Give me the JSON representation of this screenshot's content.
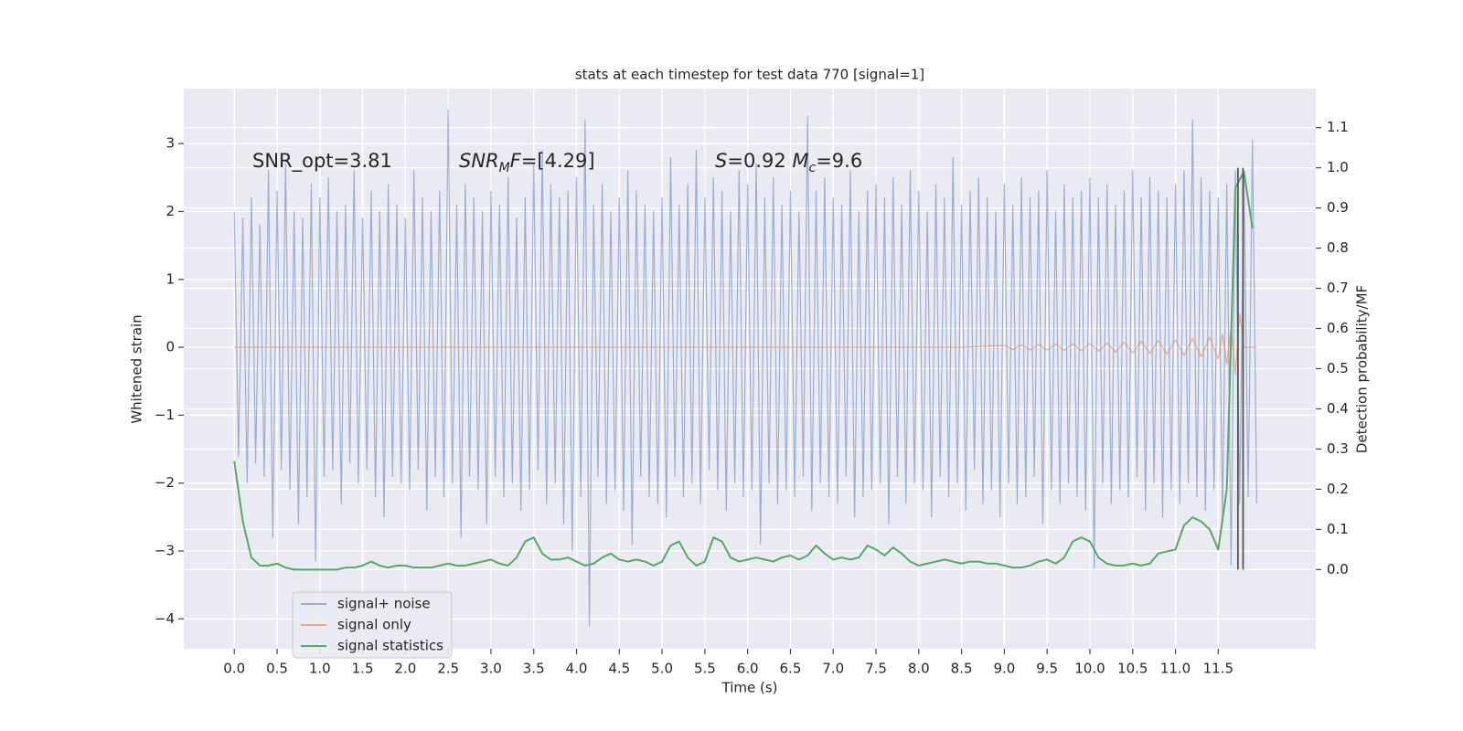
{
  "chart_data": {
    "type": "line",
    "title": "stats at each timestep for test data 770 [signal=1]",
    "xlabel": "Time (s)",
    "ylabel": "Whitened strain",
    "y2label": "Detection probability/MF",
    "xlim": [
      -0.59,
      12.64
    ],
    "ylim": [
      -4.44,
      3.81
    ],
    "y2lim": [
      -0.197,
      1.197
    ],
    "xticks": [
      {
        "value": 0,
        "label": "0.0"
      },
      0.5,
      {
        "value": 1,
        "label": "1.0"
      },
      1.5,
      {
        "value": 2,
        "label": "2.0"
      },
      2.5,
      {
        "value": 3,
        "label": "3.0"
      },
      3.5,
      {
        "value": 4,
        "label": "4.0"
      },
      4.5,
      {
        "value": 5,
        "label": "5.0"
      },
      5.5,
      {
        "value": 6,
        "label": "6.0"
      },
      6.5,
      {
        "value": 7,
        "label": "7.0"
      },
      7.5,
      {
        "value": 8,
        "label": "8.0"
      },
      8.5,
      {
        "value": 9,
        "label": "9.0"
      },
      9.5,
      {
        "value": 10,
        "label": "10.0"
      },
      10.5,
      {
        "value": 11,
        "label": "11.0"
      },
      11.5
    ],
    "yticks": [
      {
        "value": -4,
        "label": "−4"
      },
      {
        "value": -3,
        "label": "−3"
      },
      {
        "value": -2,
        "label": "−2"
      },
      {
        "value": -1,
        "label": "−1"
      },
      0,
      1,
      2,
      3
    ],
    "y2ticks": [
      {
        "value": 0,
        "label": "0.0"
      },
      0.1,
      0.2,
      0.3,
      0.4,
      0.5,
      0.6,
      0.7,
      0.8,
      0.9,
      {
        "value": 1,
        "label": "1.0"
      },
      1.1
    ],
    "grid": true,
    "legend": "lower left",
    "annotations": [
      [
        {
          "text": "SNR_opt=3.81"
        }
      ],
      [
        {
          "text": "SNR",
          "italic": true
        },
        {
          "text": "M",
          "italic": true,
          "sub": true
        },
        {
          "text": "F",
          "italic": true
        },
        {
          "text": "=[4.29]"
        }
      ],
      [
        {
          "text": "S",
          "italic": true
        },
        {
          "text": "=0.92   "
        },
        {
          "text": "M",
          "italic": true
        },
        {
          "text": "c",
          "italic": true,
          "sub": true
        },
        {
          "text": "=9.6"
        }
      ]
    ],
    "vlines": {
      "color": "#555555",
      "x": [
        11.73,
        11.79
      ],
      "y2": [
        0,
        1
      ]
    },
    "series": [
      {
        "name": "signal+ noise",
        "color": "#4c72b0",
        "opacity": 0.5,
        "axis": "y",
        "x": [
          0,
          0.05,
          0.1,
          0.15,
          0.2,
          0.25,
          0.3,
          0.35,
          0.4,
          0.45,
          0.5,
          0.55,
          0.6,
          0.65,
          0.7,
          0.75,
          0.8,
          0.85,
          0.9,
          0.95,
          1,
          1.05,
          1.1,
          1.15,
          1.2,
          1.25,
          1.3,
          1.35,
          1.4,
          1.45,
          1.5,
          1.55,
          1.6,
          1.65,
          1.7,
          1.75,
          1.8,
          1.85,
          1.9,
          1.95,
          2,
          2.05,
          2.1,
          2.15,
          2.2,
          2.25,
          2.3,
          2.35,
          2.4,
          2.45,
          2.5,
          2.55,
          2.6,
          2.65,
          2.7,
          2.75,
          2.8,
          2.85,
          2.9,
          2.95,
          3,
          3.05,
          3.1,
          3.15,
          3.2,
          3.25,
          3.3,
          3.35,
          3.4,
          3.45,
          3.5,
          3.55,
          3.6,
          3.65,
          3.7,
          3.75,
          3.8,
          3.85,
          3.9,
          3.95,
          4,
          4.05,
          4.1,
          4.15,
          4.2,
          4.25,
          4.3,
          4.35,
          4.4,
          4.45,
          4.5,
          4.55,
          4.6,
          4.65,
          4.7,
          4.75,
          4.8,
          4.85,
          4.9,
          4.95,
          5,
          5.05,
          5.1,
          5.15,
          5.2,
          5.25,
          5.3,
          5.35,
          5.4,
          5.45,
          5.5,
          5.55,
          5.6,
          5.65,
          5.7,
          5.75,
          5.8,
          5.85,
          5.9,
          5.95,
          6,
          6.05,
          6.1,
          6.15,
          6.2,
          6.25,
          6.3,
          6.35,
          6.4,
          6.45,
          6.5,
          6.55,
          6.6,
          6.65,
          6.7,
          6.75,
          6.8,
          6.85,
          6.9,
          6.95,
          7,
          7.05,
          7.1,
          7.15,
          7.2,
          7.25,
          7.3,
          7.35,
          7.4,
          7.45,
          7.5,
          7.55,
          7.6,
          7.65,
          7.7,
          7.75,
          7.8,
          7.85,
          7.9,
          7.95,
          8,
          8.05,
          8.1,
          8.15,
          8.2,
          8.25,
          8.3,
          8.35,
          8.4,
          8.45,
          8.5,
          8.55,
          8.6,
          8.65,
          8.7,
          8.75,
          8.8,
          8.85,
          8.9,
          8.95,
          9,
          9.05,
          9.1,
          9.15,
          9.2,
          9.25,
          9.3,
          9.35,
          9.4,
          9.45,
          9.5,
          9.55,
          9.6,
          9.65,
          9.7,
          9.75,
          9.8,
          9.85,
          9.9,
          9.95,
          10,
          10.05,
          10.1,
          10.15,
          10.2,
          10.25,
          10.3,
          10.35,
          10.4,
          10.45,
          10.5,
          10.55,
          10.6,
          10.65,
          10.7,
          10.75,
          10.8,
          10.85,
          10.9,
          10.95,
          11,
          11.05,
          11.1,
          11.15,
          11.2,
          11.25,
          11.3,
          11.35,
          11.4,
          11.45,
          11.5,
          11.55,
          11.6,
          11.65,
          11.7,
          11.75,
          11.8,
          11.85,
          11.9,
          11.95
        ],
        "values": [
          2.0,
          -1.6,
          1.9,
          -2.0,
          2.2,
          -1.7,
          1.8,
          -1.9,
          2.6,
          -2.8,
          2.3,
          -1.8,
          2.7,
          -2.1,
          2.0,
          -2.6,
          1.9,
          -2.2,
          2.4,
          -3.15,
          2.2,
          -1.9,
          2.5,
          -1.8,
          2.0,
          -2.3,
          2.1,
          -1.7,
          2.6,
          -2.0,
          1.9,
          -1.8,
          2.3,
          -2.2,
          2.0,
          -2.5,
          2.4,
          -1.9,
          2.1,
          -2.0,
          1.9,
          -2.1,
          2.6,
          -1.8,
          2.2,
          -2.4,
          2.0,
          -1.9,
          2.3,
          -2.2,
          3.5,
          -2.0,
          2.1,
          -2.8,
          2.4,
          -1.9,
          2.2,
          -2.1,
          2.0,
          -2.6,
          2.3,
          -1.9,
          2.1,
          -2.2,
          2.5,
          -2.0,
          1.9,
          -2.4,
          2.2,
          -2.1,
          2.7,
          -1.8,
          2.9,
          -2.3,
          2.4,
          -2.0,
          2.2,
          -2.6,
          2.3,
          -3.0,
          2.5,
          -2.2,
          3.35,
          -4.1,
          2.1,
          -1.9,
          2.4,
          -2.3,
          2.0,
          -2.1,
          2.2,
          -2.4,
          2.6,
          -2.9,
          2.3,
          -1.9,
          2.1,
          -2.2,
          2.0,
          -2.3,
          2.2,
          -2.5,
          2.8,
          -1.9,
          2.1,
          -2.2,
          2.4,
          -2.0,
          2.9,
          -2.3,
          2.2,
          -1.8,
          2.5,
          -2.1,
          2.3,
          -2.4,
          2.0,
          -2.0,
          2.6,
          -2.2,
          2.4,
          -2.1,
          2.7,
          -2.9,
          2.2,
          -2.0,
          2.5,
          -2.3,
          2.1,
          -2.1,
          2.3,
          -2.2,
          2.0,
          -1.9,
          3.4,
          -2.4,
          2.3,
          -2.0,
          2.5,
          -2.2,
          2.2,
          -2.3,
          2.1,
          -1.9,
          2.6,
          -2.5,
          2.0,
          -2.2,
          2.3,
          -2.1,
          2.4,
          -2.0,
          2.2,
          -2.6,
          2.5,
          -1.9,
          2.1,
          -2.3,
          2.6,
          -2.0,
          2.3,
          -2.1,
          2.0,
          -2.5,
          2.4,
          -1.9,
          2.2,
          -2.2,
          2.8,
          -2.0,
          2.1,
          -2.4,
          2.3,
          -1.8,
          2.5,
          -2.3,
          2.2,
          -2.1,
          2.0,
          -2.5,
          2.4,
          -2.0,
          2.1,
          -2.3,
          2.5,
          -2.2,
          2.2,
          -1.9,
          2.3,
          -2.6,
          2.6,
          -2.1,
          2.0,
          -2.3,
          2.4,
          -2.0,
          2.2,
          -2.2,
          2.3,
          -2.4,
          2.5,
          -3.25,
          2.2,
          -2.0,
          2.4,
          -2.3,
          2.1,
          -2.1,
          2.3,
          -2.2,
          2.6,
          -1.9,
          2.2,
          -2.4,
          2.5,
          -2.0,
          2.3,
          -2.5,
          2.2,
          -2.1,
          2.4,
          -2.3,
          2.6,
          -2.0,
          3.35,
          -2.2,
          2.5,
          -2.4,
          2.3,
          -2.1,
          2.2,
          -2.5,
          2.4,
          -3.2,
          2.6,
          -2.3,
          2.5,
          -2.2,
          3.05,
          -2.3
        ]
      },
      {
        "name": "signal only",
        "color": "#dd8452",
        "opacity": 0.6,
        "axis": "y",
        "x": [
          0,
          8.5,
          9.0,
          9.1,
          9.2,
          9.3,
          9.4,
          9.5,
          9.6,
          9.7,
          9.8,
          9.9,
          10.0,
          10.1,
          10.2,
          10.3,
          10.4,
          10.5,
          10.6,
          10.7,
          10.8,
          10.9,
          11.0,
          11.1,
          11.2,
          11.3,
          11.4,
          11.5,
          11.55,
          11.6,
          11.65,
          11.7,
          11.75,
          11.8,
          11.95
        ],
        "values": [
          0,
          0,
          0.03,
          -0.03,
          0.035,
          -0.035,
          0.04,
          -0.04,
          0.045,
          -0.045,
          0.05,
          -0.05,
          0.06,
          -0.06,
          0.065,
          -0.07,
          0.075,
          -0.08,
          0.085,
          -0.09,
          0.1,
          -0.1,
          0.11,
          -0.12,
          0.13,
          -0.14,
          0.15,
          -0.17,
          0.2,
          -0.25,
          0.3,
          -0.4,
          0.5,
          0,
          0
        ]
      },
      {
        "name": "signal statistics",
        "color": "#55a868",
        "opacity": 1,
        "axis": "y2",
        "x": [
          0,
          0.1,
          0.2,
          0.3,
          0.4,
          0.5,
          0.6,
          0.7,
          0.8,
          0.9,
          1,
          1.1,
          1.2,
          1.3,
          1.4,
          1.5,
          1.6,
          1.7,
          1.8,
          1.9,
          2,
          2.1,
          2.2,
          2.3,
          2.4,
          2.5,
          2.6,
          2.7,
          2.8,
          2.9,
          3,
          3.1,
          3.2,
          3.3,
          3.4,
          3.5,
          3.6,
          3.7,
          3.8,
          3.9,
          4,
          4.1,
          4.2,
          4.3,
          4.4,
          4.5,
          4.6,
          4.7,
          4.8,
          4.9,
          5,
          5.1,
          5.2,
          5.3,
          5.4,
          5.5,
          5.6,
          5.7,
          5.8,
          5.9,
          6,
          6.1,
          6.2,
          6.3,
          6.4,
          6.5,
          6.6,
          6.7,
          6.8,
          6.9,
          7,
          7.1,
          7.2,
          7.3,
          7.4,
          7.5,
          7.6,
          7.7,
          7.8,
          7.9,
          8,
          8.1,
          8.2,
          8.3,
          8.4,
          8.5,
          8.6,
          8.7,
          8.8,
          8.9,
          9,
          9.1,
          9.2,
          9.3,
          9.4,
          9.5,
          9.6,
          9.7,
          9.8,
          9.9,
          10,
          10.1,
          10.2,
          10.3,
          10.4,
          10.5,
          10.6,
          10.7,
          10.8,
          10.9,
          11,
          11.1,
          11.2,
          11.3,
          11.4,
          11.5,
          11.6,
          11.7,
          11.8,
          11.9
        ],
        "values": [
          0.27,
          0.12,
          0.03,
          0.01,
          0.01,
          0.015,
          0.005,
          0,
          0,
          0,
          0,
          0,
          0,
          0.005,
          0.005,
          0.01,
          0.02,
          0.01,
          0.005,
          0.01,
          0.01,
          0.005,
          0.005,
          0.005,
          0.01,
          0.015,
          0.01,
          0.01,
          0.015,
          0.02,
          0.025,
          0.015,
          0.01,
          0.03,
          0.07,
          0.08,
          0.04,
          0.025,
          0.025,
          0.03,
          0.02,
          0.01,
          0.015,
          0.03,
          0.04,
          0.025,
          0.02,
          0.025,
          0.02,
          0.01,
          0.02,
          0.06,
          0.07,
          0.03,
          0.01,
          0.02,
          0.08,
          0.07,
          0.03,
          0.02,
          0.025,
          0.03,
          0.025,
          0.02,
          0.03,
          0.035,
          0.025,
          0.035,
          0.06,
          0.04,
          0.025,
          0.03,
          0.025,
          0.03,
          0.06,
          0.05,
          0.035,
          0.055,
          0.04,
          0.02,
          0.01,
          0.015,
          0.02,
          0.025,
          0.02,
          0.015,
          0.02,
          0.02,
          0.015,
          0.015,
          0.01,
          0.005,
          0.005,
          0.01,
          0.02,
          0.025,
          0.015,
          0.03,
          0.07,
          0.08,
          0.07,
          0.03,
          0.015,
          0.01,
          0.01,
          0.015,
          0.01,
          0.015,
          0.04,
          0.045,
          0.05,
          0.11,
          0.13,
          0.12,
          0.1,
          0.05,
          0.2,
          0.95,
          0.99,
          0.85
        ]
      }
    ]
  }
}
